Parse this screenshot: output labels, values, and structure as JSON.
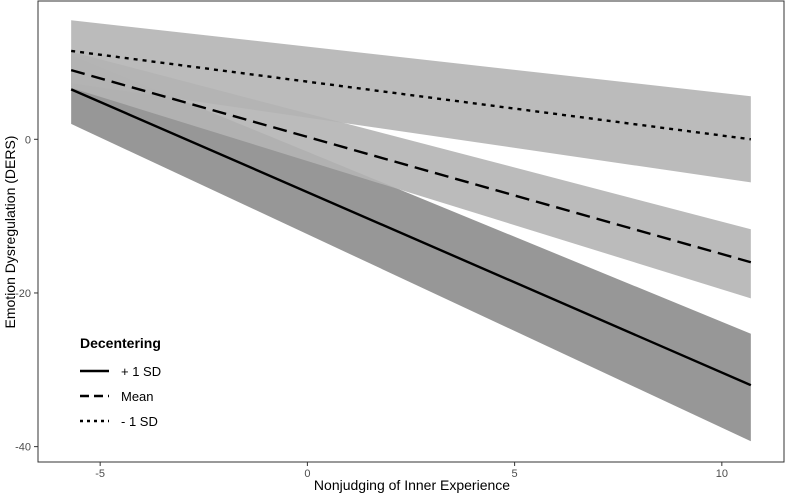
{
  "chart_data": {
    "type": "line",
    "title": "",
    "xlabel": "Nonjudging of Inner Experience",
    "ylabel": "Emotion Dysregulation (DERS)",
    "xlim": [
      -6.5,
      11.5
    ],
    "ylim": [
      -42,
      18
    ],
    "x_ticks": [
      -5,
      0,
      5,
      10
    ],
    "y_ticks": [
      -40,
      -20,
      0
    ],
    "x_tick_labels": [
      "-5",
      "0",
      "5",
      "10"
    ],
    "y_tick_labels": [
      "-40",
      "-20",
      "0"
    ],
    "grid": false,
    "legend": {
      "title": "Decentering",
      "position": "bottom-left"
    },
    "colors": {
      "ribbon_light": "#b4b4b4",
      "ribbon_dark": "#8c8c8c",
      "line": "#000000",
      "panel_border": "#333333"
    },
    "series": [
      {
        "name": "+ 1 SD",
        "dash": "solid",
        "ribbon": "dark",
        "x": [
          -5.7,
          10.7
        ],
        "y": [
          6.5,
          -32
        ],
        "lower": [
          2,
          -39.3
        ],
        "upper": [
          11,
          -25.3
        ]
      },
      {
        "name": "Mean",
        "dash": "dashed",
        "ribbon": "light",
        "x": [
          -5.7,
          10.7
        ],
        "y": [
          9,
          -16
        ],
        "lower": [
          6.7,
          -20.7
        ],
        "upper": [
          11.4,
          -11.7
        ]
      },
      {
        "name": "- 1 SD",
        "dash": "dotted",
        "ribbon": "light",
        "x": [
          -5.7,
          10.7
        ],
        "y": [
          11.5,
          0
        ],
        "lower": [
          7.3,
          -5.6
        ],
        "upper": [
          15.5,
          5.6
        ]
      }
    ]
  }
}
